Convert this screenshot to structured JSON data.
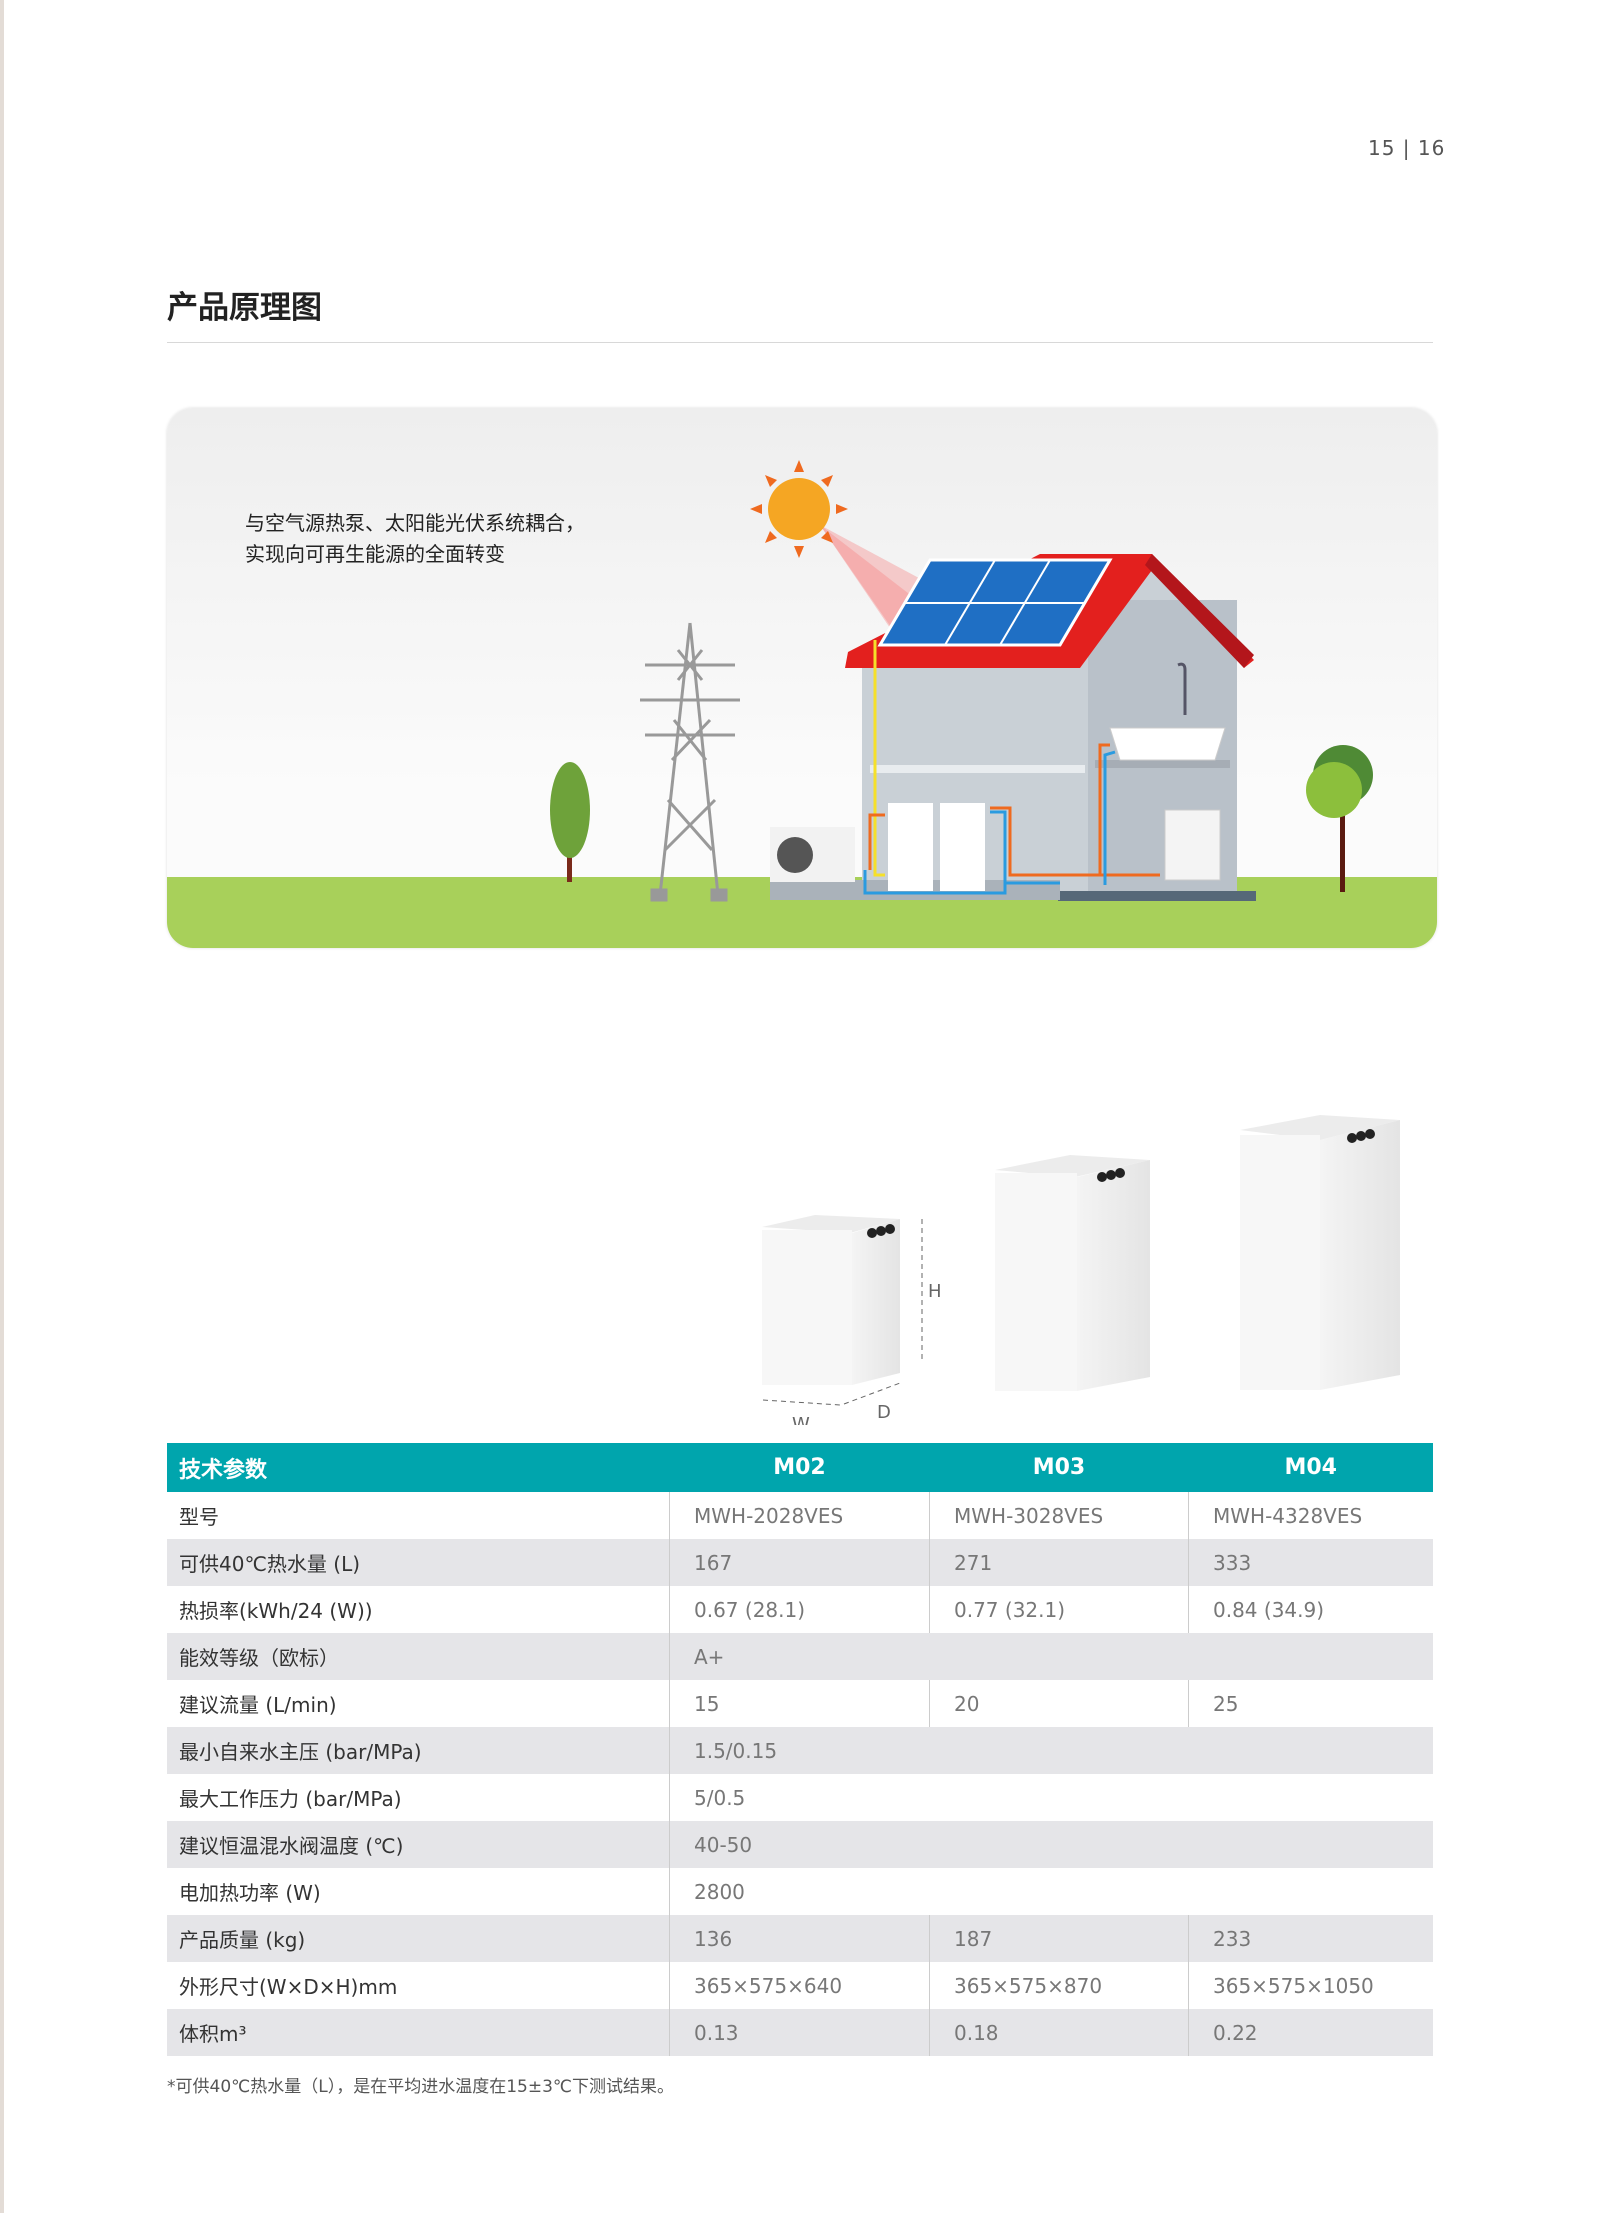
{
  "page_number": "15 | 16",
  "section_title": "产品原理图",
  "illustration": {
    "caption_lines": [
      "与空气源热泵、太阳能光伏系统耦合，",
      "实现向可再生能源的全面转变"
    ],
    "colors": {
      "sky": "#eeeeee",
      "grass": "#a8d05a",
      "roof": "#e3201e",
      "sun": "#f5a623",
      "panel": "#1f6fc4",
      "hot_pipe": "#ef6a1f",
      "cold_pipe": "#2a9be0",
      "power_line": "#f5e02a"
    }
  },
  "products": {
    "dimension_labels": {
      "height": "H",
      "width": "W",
      "depth": "D"
    }
  },
  "table": {
    "header_color": "#00a5ad",
    "headers": [
      "技术参数",
      "M02",
      "M03",
      "M04"
    ],
    "rows": [
      {
        "label": "型号",
        "values": [
          "MWH-2028VES",
          "MWH-3028VES",
          "MWH-4328VES"
        ]
      },
      {
        "label": "可供40℃热水量 (L)",
        "values": [
          "167",
          "271",
          "333"
        ]
      },
      {
        "label": "热损率(kWh/24 (W))",
        "values": [
          "0.67 (28.1)",
          "0.77 (32.1)",
          "0.84 (34.9)"
        ]
      },
      {
        "label": "能效等级（欧标）",
        "values": [
          "A+"
        ]
      },
      {
        "label": "建议流量 (L/min)",
        "values": [
          "15",
          "20",
          "25"
        ]
      },
      {
        "label": "最小自来水主压 (bar/MPa)",
        "values": [
          "1.5/0.15"
        ]
      },
      {
        "label": "最大工作压力 (bar/MPa)",
        "values": [
          "5/0.5"
        ]
      },
      {
        "label": "建议恒温混水阀温度 (℃)",
        "values": [
          "40-50"
        ]
      },
      {
        "label": "电加热功率 (W)",
        "values": [
          "2800"
        ]
      },
      {
        "label": "产品质量 (kg)",
        "values": [
          "136",
          "187",
          "233"
        ]
      },
      {
        "label": "外形尺寸(W×D×H)mm",
        "values": [
          "365×575×640",
          "365×575×870",
          "365×575×1050"
        ]
      },
      {
        "label": "体积m³",
        "values": [
          "0.13",
          "0.18",
          "0.22"
        ]
      }
    ]
  },
  "footnote": "*可供40℃热水量（L），是在平均进水温度在15±3℃下测试结果。"
}
